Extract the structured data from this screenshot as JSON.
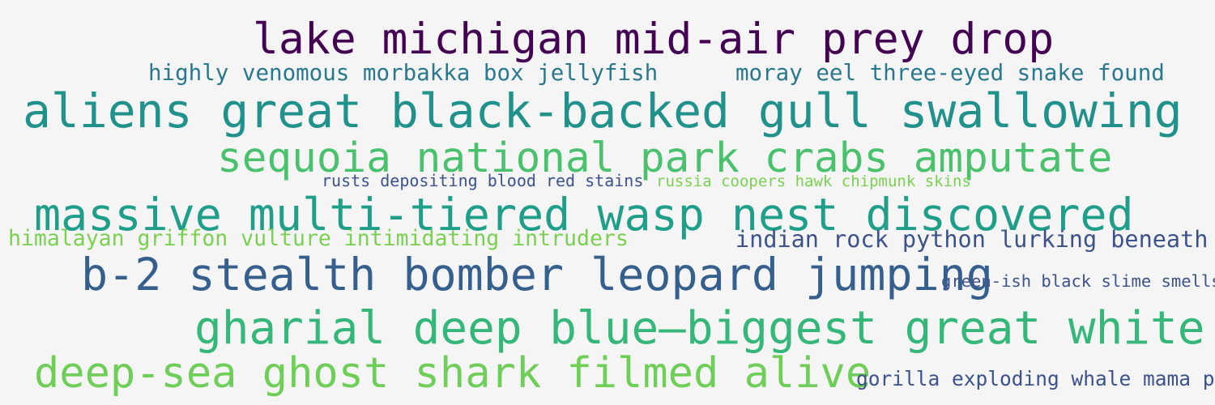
{
  "words": [
    {
      "text": "lake michigan mid-air prey drop",
      "color": "#440154"
    },
    {
      "text": "highly venomous morbakka box jellyfish",
      "color": "#2a788e"
    },
    {
      "text": "moray eel three-eyed snake found",
      "color": "#2a788e"
    },
    {
      "text": "aliens great black-backed gull swallowing",
      "color": "#21918c"
    },
    {
      "text": "sequoia national park crabs amputate",
      "color": "#4ac16d"
    },
    {
      "text": "rusts depositing blood red stains",
      "color": "#3b528b"
    },
    {
      "text": "russia coopers hawk chipmunk skins",
      "color": "#7ad151"
    },
    {
      "text": "massive multi-tiered wasp nest discovered",
      "color": "#1f9e89"
    },
    {
      "text": "himalayan griffon vulture intimidating intruders",
      "color": "#7ad151"
    },
    {
      "text": "indian rock python lurking beneath",
      "color": "#3b528b"
    },
    {
      "text": "b-2 stealth bomber leopard jumping",
      "color": "#355f8d"
    },
    {
      "text": "green-ish black slime smells",
      "color": "#3b528b"
    },
    {
      "text": "gharial deep blue—biggest great white",
      "color": "#35b779"
    },
    {
      "text": "deep-sea ghost shark filmed alive",
      "color": "#6ece58"
    },
    {
      "text": "gorilla exploding whale mama pig",
      "color": "#3b528b"
    }
  ]
}
